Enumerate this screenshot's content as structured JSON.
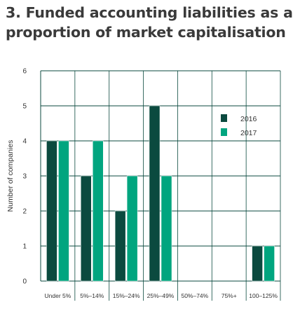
{
  "title": {
    "line1": "3. Funded accounting liabilities as a",
    "line2": "proportion of market capitalisation"
  },
  "colors": {
    "series_2016": "#0b4a3f",
    "series_2017": "#00a57f",
    "grid": "#0b4a3f",
    "text": "#333333"
  },
  "chart_data": {
    "type": "bar",
    "categories": [
      "Under 5%",
      "5%–14%",
      "15%–24%",
      "25%–49%",
      "50%–74%",
      "75%+",
      "100–125%"
    ],
    "series": [
      {
        "name": "2016",
        "values": [
          4,
          3,
          2,
          5,
          0,
          0,
          1
        ]
      },
      {
        "name": "2017",
        "values": [
          4,
          4,
          3,
          3,
          0,
          0,
          1
        ]
      }
    ],
    "ylabel": "Number of companies",
    "ylim": [
      0,
      6
    ],
    "yticks": [
      0,
      1,
      2,
      3,
      4,
      5,
      6
    ],
    "grid": true,
    "legend": "right"
  }
}
